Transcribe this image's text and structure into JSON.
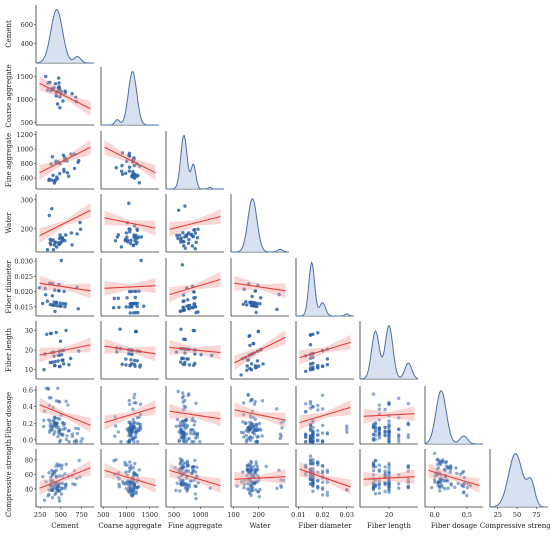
{
  "chart_data": {
    "type": "pairplot",
    "variables": [
      "Cement",
      "Coarse aggregate",
      "Fine aggregate",
      "Water",
      "Fiber diameter",
      "Fiber length",
      "Fiber dosage",
      "Compressive strength"
    ],
    "x_ticks": [
      [
        "250",
        "500",
        "750"
      ],
      [
        "500",
        "1000",
        "1500"
      ],
      [
        "500",
        "1000"
      ],
      [
        "100",
        "200"
      ],
      [
        "0.01",
        "0.02",
        "0.03"
      ],
      [
        "20"
      ],
      [
        "0.0",
        "0.5"
      ],
      [
        "25",
        "50",
        "75"
      ]
    ],
    "y_ticks": [
      [
        "400",
        "600"
      ],
      [
        "500",
        "1000",
        "1500"
      ],
      [
        "600",
        "800",
        "1000",
        "1200"
      ],
      [
        "200",
        "300"
      ],
      [
        "0.015",
        "0.020",
        "0.025",
        "0.030"
      ],
      [
        "10",
        "20",
        "30"
      ],
      [
        "0.0",
        "0.2",
        "0.4",
        "0.6"
      ],
      [
        "40",
        "60",
        "80"
      ]
    ],
    "x_ranges": [
      [
        200,
        900
      ],
      [
        450,
        1700
      ],
      [
        350,
        1450
      ],
      [
        90,
        320
      ],
      [
        0.009,
        0.033
      ],
      [
        5,
        35
      ],
      [
        -0.15,
        0.75
      ],
      [
        15,
        90
      ]
    ],
    "y_ranges": [
      [
        200,
        800
      ],
      [
        450,
        1700
      ],
      [
        450,
        1250
      ],
      [
        120,
        320
      ],
      [
        0.012,
        0.031
      ],
      [
        5,
        35
      ],
      [
        -0.05,
        0.65
      ],
      [
        15,
        95
      ]
    ],
    "kde": [
      {
        "var": "Cement",
        "peaks": [
          {
            "mu": 450,
            "sigma": 70,
            "w": 1.0
          },
          {
            "mu": 700,
            "sigma": 40,
            "w": 0.12
          }
        ]
      },
      {
        "var": "Coarse aggregate",
        "peaks": [
          {
            "mu": 1130,
            "sigma": 90,
            "w": 1.0
          },
          {
            "mu": 800,
            "sigma": 50,
            "w": 0.1
          }
        ]
      },
      {
        "var": "Fine aggregate",
        "peaks": [
          {
            "mu": 690,
            "sigma": 60,
            "w": 1.0
          },
          {
            "mu": 870,
            "sigma": 45,
            "w": 0.45
          },
          {
            "mu": 1180,
            "sigma": 30,
            "w": 0.03
          }
        ]
      },
      {
        "var": "Water",
        "peaks": [
          {
            "mu": 175,
            "sigma": 18,
            "w": 1.0
          },
          {
            "mu": 285,
            "sigma": 10,
            "w": 0.05
          }
        ]
      },
      {
        "var": "Fiber diameter",
        "peaks": [
          {
            "mu": 0.0155,
            "sigma": 0.0012,
            "w": 1.0
          },
          {
            "mu": 0.02,
            "sigma": 0.0012,
            "w": 0.25
          },
          {
            "mu": 0.03,
            "sigma": 0.0008,
            "w": 0.04
          }
        ]
      },
      {
        "var": "Fiber length",
        "peaks": [
          {
            "mu": 13,
            "sigma": 2.0,
            "w": 0.9
          },
          {
            "mu": 20,
            "sigma": 2.0,
            "w": 1.0
          },
          {
            "mu": 30,
            "sigma": 1.8,
            "w": 0.3
          }
        ]
      },
      {
        "var": "Fiber dosage",
        "peaks": [
          {
            "mu": 0.1,
            "sigma": 0.08,
            "w": 1.0
          },
          {
            "mu": 0.45,
            "sigma": 0.06,
            "w": 0.15
          }
        ]
      },
      {
        "var": "Compressive strength",
        "peaks": [
          {
            "mu": 48,
            "sigma": 9,
            "w": 1.0
          },
          {
            "mu": 68,
            "sigma": 5,
            "w": 0.45
          }
        ]
      }
    ],
    "colors": {
      "points": "#2b63a8",
      "fit_line": "#e0403a",
      "band": "#f4a6a0",
      "kde_line": "#4a6fa8",
      "kde_fill": "#c7d4ea",
      "frame": "#333333"
    }
  }
}
